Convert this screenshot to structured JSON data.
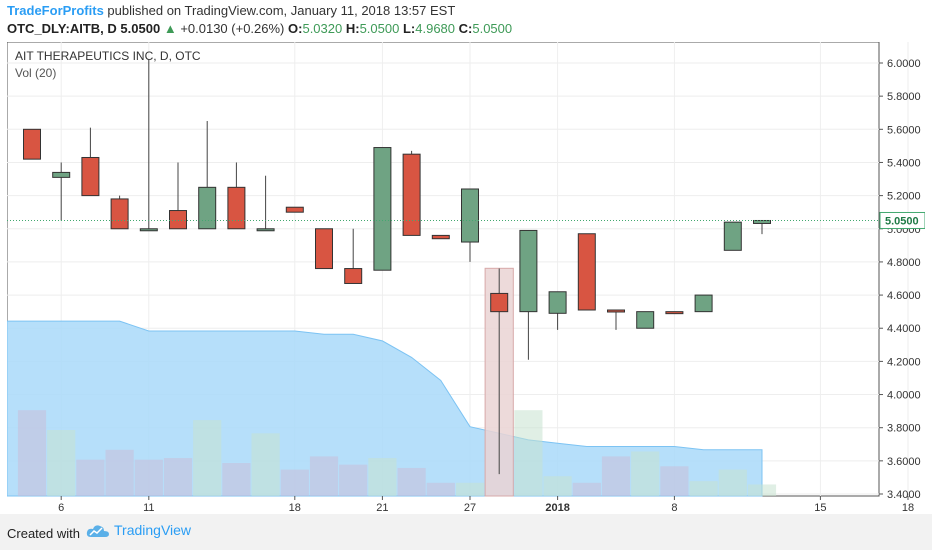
{
  "header": {
    "author": "TradeForProfits",
    "published_text": "published on TradingView.com, January 11, 2018 13:57 EST",
    "symbol": "OTC_DLY:AITB, D",
    "last": "5.0500",
    "change_arrow": "▲",
    "change": "+0.0130 (+0.26%)",
    "o_label": "O:",
    "o_value": "5.0320",
    "h_label": "H:",
    "h_value": "5.0500",
    "l_label": "L:",
    "l_value": "4.9680",
    "c_label": "C:",
    "c_value": "5.0500"
  },
  "chart_data": {
    "type": "candlestick",
    "title": "AIT THERAPEUTICS INC, D, OTC",
    "volume_label": "Vol (20)",
    "y_ticks": [
      "6.0000",
      "5.8000",
      "5.6000",
      "5.4000",
      "5.2000",
      "5.0000",
      "4.8000",
      "4.6000",
      "4.4000",
      "4.2000",
      "4.0000",
      "3.8000",
      "3.6000",
      "3.4000"
    ],
    "ylim": [
      3.35,
      6.07
    ],
    "x_ticks": [
      {
        "label": "6",
        "i": 1
      },
      {
        "label": "11",
        "i": 4
      },
      {
        "label": "18",
        "i": 9
      },
      {
        "label": "21",
        "i": 12
      },
      {
        "label": "27",
        "i": 15
      },
      {
        "label": "2018",
        "i": 18
      },
      {
        "label": "8",
        "i": 22
      },
      {
        "label": "15",
        "i": 27
      },
      {
        "label": "18",
        "i": 30
      }
    ],
    "last_price_label": "5.0500",
    "last_price": 5.05,
    "grid": true,
    "colors": {
      "up": "#6fa383",
      "down": "#d85542",
      "volume_area": "#a9d9f9",
      "volume_up": "#a3c9d9",
      "volume_down": "#b9bddf",
      "last_line": "#43a870"
    },
    "candles": [
      {
        "i": 0,
        "open": 5.6,
        "high": 5.6,
        "low": 5.42,
        "close": 5.42
      },
      {
        "i": 1,
        "open": 5.31,
        "high": 5.4,
        "low": 5.05,
        "close": 5.34
      },
      {
        "i": 2,
        "open": 5.43,
        "high": 5.61,
        "low": 5.2,
        "close": 5.2
      },
      {
        "i": 3,
        "open": 5.18,
        "high": 5.2,
        "low": 5.0,
        "close": 5.0
      },
      {
        "i": 4,
        "open": 5.0,
        "high": 6.02,
        "low": 5.0,
        "close": 5.0
      },
      {
        "i": 5,
        "open": 5.11,
        "high": 5.4,
        "low": 5.0,
        "close": 5.0
      },
      {
        "i": 6,
        "open": 5.0,
        "high": 5.65,
        "low": 5.0,
        "close": 5.25
      },
      {
        "i": 7,
        "open": 5.25,
        "high": 5.4,
        "low": 5.0,
        "close": 5.0
      },
      {
        "i": 8,
        "open": 5.0,
        "high": 5.32,
        "low": 5.0,
        "close": 5.0
      },
      {
        "i": 9,
        "open": 5.13,
        "high": 5.13,
        "low": 5.1,
        "close": 5.1
      },
      {
        "i": 10,
        "open": 5.0,
        "high": 5.0,
        "low": 4.76,
        "close": 4.76
      },
      {
        "i": 11,
        "open": 4.76,
        "high": 5.0,
        "low": 4.67,
        "close": 4.67
      },
      {
        "i": 12,
        "open": 4.75,
        "high": 5.49,
        "low": 4.75,
        "close": 5.49
      },
      {
        "i": 13,
        "open": 5.45,
        "high": 5.47,
        "low": 4.96,
        "close": 4.96
      },
      {
        "i": 14,
        "open": 4.96,
        "high": 4.96,
        "low": 4.94,
        "close": 4.94
      },
      {
        "i": 15,
        "open": 4.92,
        "high": 5.24,
        "low": 4.8,
        "close": 5.24
      },
      {
        "i": 16,
        "open": 4.61,
        "high": 4.76,
        "low": 3.52,
        "close": 4.5
      },
      {
        "i": 17,
        "open": 4.5,
        "high": 4.99,
        "low": 4.21,
        "close": 4.99
      },
      {
        "i": 18,
        "open": 4.49,
        "high": 4.62,
        "low": 4.39,
        "close": 4.62
      },
      {
        "i": 19,
        "open": 4.97,
        "high": 4.97,
        "low": 4.51,
        "close": 4.51
      },
      {
        "i": 20,
        "open": 4.51,
        "high": 4.51,
        "low": 4.39,
        "close": 4.5
      },
      {
        "i": 21,
        "open": 4.4,
        "high": 4.5,
        "low": 4.4,
        "close": 4.5
      },
      {
        "i": 22,
        "open": 4.5,
        "high": 4.5,
        "low": 4.49,
        "close": 4.49
      },
      {
        "i": 23,
        "open": 4.5,
        "high": 4.6,
        "low": 4.5,
        "close": 4.6
      },
      {
        "i": 24,
        "open": 4.87,
        "high": 5.04,
        "low": 4.87,
        "close": 5.04
      },
      {
        "i": 25,
        "open": 5.032,
        "high": 5.05,
        "low": 4.968,
        "close": 5.05
      }
    ],
    "volume_bars": [
      {
        "i": 0,
        "v": 0.26,
        "dir": "down"
      },
      {
        "i": 1,
        "v": 0.2,
        "dir": "up"
      },
      {
        "i": 2,
        "v": 0.11,
        "dir": "down"
      },
      {
        "i": 3,
        "v": 0.14,
        "dir": "down"
      },
      {
        "i": 4,
        "v": 0.11,
        "dir": "down"
      },
      {
        "i": 5,
        "v": 0.115,
        "dir": "down"
      },
      {
        "i": 6,
        "v": 0.23,
        "dir": "up"
      },
      {
        "i": 7,
        "v": 0.1,
        "dir": "down"
      },
      {
        "i": 8,
        "v": 0.19,
        "dir": "up"
      },
      {
        "i": 9,
        "v": 0.08,
        "dir": "down"
      },
      {
        "i": 10,
        "v": 0.12,
        "dir": "down"
      },
      {
        "i": 11,
        "v": 0.095,
        "dir": "down"
      },
      {
        "i": 12,
        "v": 0.115,
        "dir": "up"
      },
      {
        "i": 13,
        "v": 0.085,
        "dir": "down"
      },
      {
        "i": 14,
        "v": 0.04,
        "dir": "down"
      },
      {
        "i": 15,
        "v": 0.04,
        "dir": "up"
      },
      {
        "i": 16,
        "v": 0.69,
        "dir": "down"
      },
      {
        "i": 17,
        "v": 0.26,
        "dir": "up"
      },
      {
        "i": 18,
        "v": 0.06,
        "dir": "up"
      },
      {
        "i": 19,
        "v": 0.04,
        "dir": "down"
      },
      {
        "i": 20,
        "v": 0.12,
        "dir": "down"
      },
      {
        "i": 21,
        "v": 0.135,
        "dir": "up"
      },
      {
        "i": 22,
        "v": 0.09,
        "dir": "down"
      },
      {
        "i": 23,
        "v": 0.045,
        "dir": "up"
      },
      {
        "i": 24,
        "v": 0.08,
        "dir": "up"
      },
      {
        "i": 25,
        "v": 0.035,
        "dir": "up"
      }
    ],
    "volume_ma": [
      0.53,
      0.53,
      0.53,
      0.53,
      0.5,
      0.5,
      0.5,
      0.5,
      0.5,
      0.5,
      0.49,
      0.49,
      0.47,
      0.42,
      0.35,
      0.21,
      0.19,
      0.17,
      0.16,
      0.15,
      0.15,
      0.15,
      0.15,
      0.14,
      0.14,
      0.14
    ],
    "volume_max": 1.0
  },
  "footer": {
    "created_with": "Created with",
    "brand": "TradingView"
  }
}
